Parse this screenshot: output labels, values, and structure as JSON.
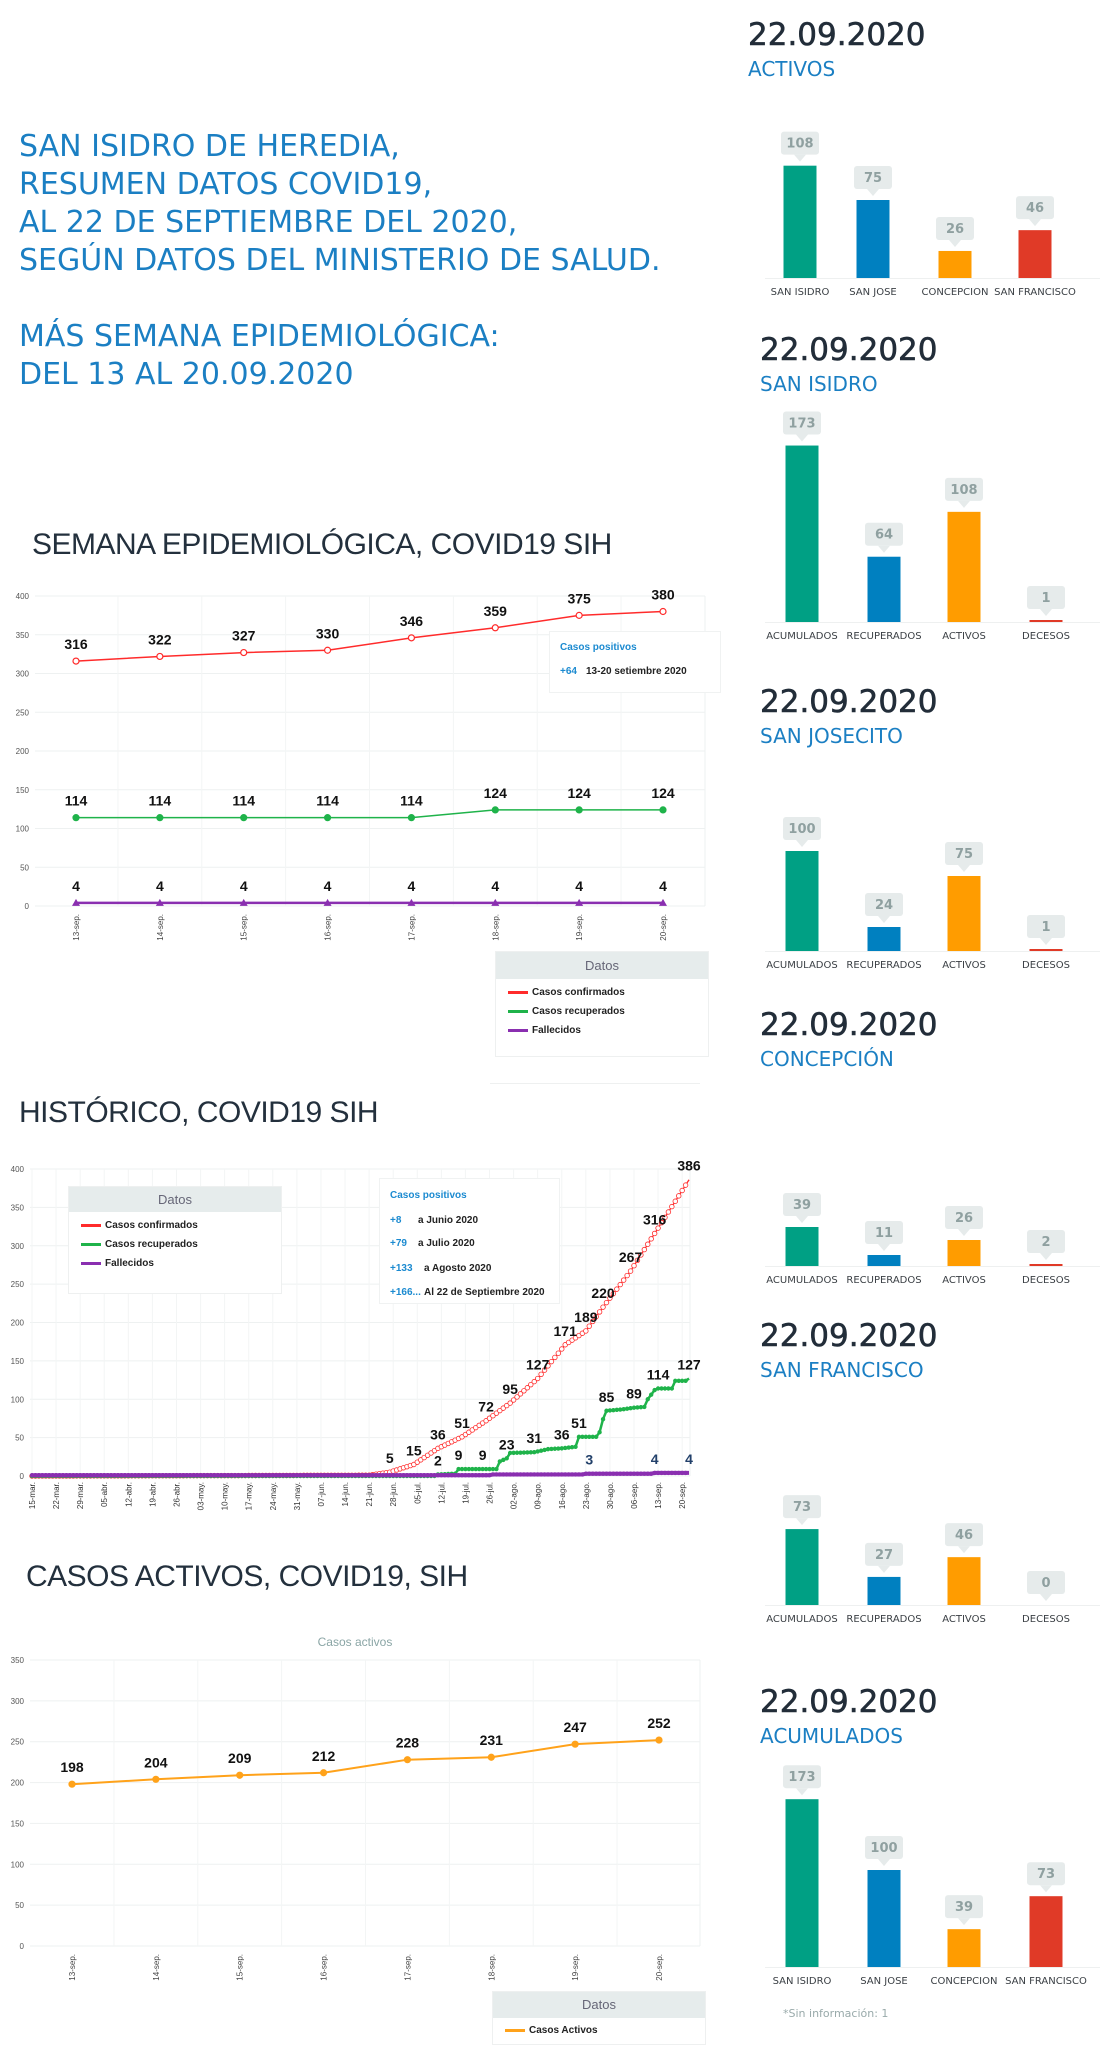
{
  "header": {
    "lines": [
      "SAN ISIDRO DE HEREDIA,",
      "RESUMEN DATOS COVID19,",
      "AL 22 DE SEPTIEMBRE DEL 2020,",
      "SEGÚN DATOS DEL MINISTERIO DE SALUD."
    ],
    "week_lines": [
      "MÁS SEMANA EPIDEMIOLÓGICA:",
      "DEL 13 AL 20.09.2020"
    ]
  },
  "sections": {
    "weekly_title": "SEMANA EPIDEMIOLÓGICA, COVID19 SIH",
    "historic_title": "HISTÓRICO, COVID19 SIH",
    "active_title": "CASOS ACTIVOS, COVID19, SIH"
  },
  "colors": {
    "accent": "#1b7fc3",
    "confirmed": "#ff2b2b",
    "recovered": "#1fb34a",
    "deaths": "#8a2fb0",
    "active": "#ffa21a",
    "bar_green": "#00a084",
    "bar_blue": "#0080c0",
    "bar_orange": "#ff9c00",
    "bar_red": "#e03a27"
  },
  "legend": {
    "title": "Datos",
    "confirmed": "Casos confirmados",
    "recovered": "Casos recuperados",
    "deaths": "Fallecidos",
    "active": "Casos Activos"
  },
  "weekly_box": {
    "title": "Casos positivos",
    "delta": "+64",
    "period": "13-20 setiembre 2020"
  },
  "historic_box": {
    "title": "Casos positivos",
    "rows": [
      {
        "delta": "+8",
        "text": "a Junio 2020"
      },
      {
        "delta": "+79",
        "text": "a Julio 2020"
      },
      {
        "delta": "+133",
        "text": "a Agosto 2020"
      },
      {
        "delta": "+166...",
        "text": "Al 22 de Septiembre 2020"
      }
    ]
  },
  "footnote": "*Sin información: 1",
  "chart_data": [
    {
      "type": "line",
      "categories": [
        "13-sep.",
        "14-sep.",
        "15-sep.",
        "16-sep.",
        "17-sep.",
        "18-sep.",
        "19-sep.",
        "20-sep."
      ],
      "y_ticks": [
        "0",
        "50",
        "100",
        "150",
        "200",
        "250",
        "300",
        "350",
        "400"
      ],
      "ylim": [
        0,
        400
      ],
      "grid": true,
      "legend_placement": "bottom-right",
      "series": [
        {
          "name": "Casos confirmados",
          "values": [
            316,
            322,
            327,
            330,
            346,
            359,
            375,
            380
          ]
        },
        {
          "name": "Casos recuperados",
          "values": [
            114,
            114,
            114,
            114,
            114,
            124,
            124,
            124
          ]
        },
        {
          "name": "Fallecidos",
          "values": [
            4,
            4,
            4,
            4,
            4,
            4,
            4,
            4
          ]
        }
      ]
    },
    {
      "type": "line",
      "x_ticks": [
        "15-mar.",
        "22-mar.",
        "29-mar.",
        "05-abr.",
        "12-abr.",
        "19-abr.",
        "26-abr.",
        "03-may.",
        "10-may.",
        "17-may.",
        "24-may.",
        "31-may.",
        "07-jun.",
        "14-jun.",
        "21-jun.",
        "28-jun.",
        "05-jul.",
        "12-jul.",
        "19-jul.",
        "26-jul.",
        "02-ago.",
        "09-ago.",
        "16-ago.",
        "23-ago.",
        "30-ago.",
        "06-sep.",
        "13-sep.",
        "20-sep."
      ],
      "y_ticks": [
        "0",
        "50",
        "100",
        "150",
        "200",
        "250",
        "300",
        "350",
        "400"
      ],
      "ylim": [
        0,
        400
      ],
      "grid": true,
      "legend_placement": "top-left",
      "series": [
        {
          "name": "Casos confirmados",
          "points": [
            [
              "2020-03-15",
              0
            ],
            [
              "2020-06-21",
              1
            ],
            [
              "2020-06-27",
              5
            ],
            [
              "2020-07-04",
              15
            ],
            [
              "2020-07-11",
              36
            ],
            [
              "2020-07-18",
              51
            ],
            [
              "2020-07-25",
              72
            ],
            [
              "2020-08-01",
              95
            ],
            [
              "2020-08-09",
              127
            ],
            [
              "2020-08-17",
              171
            ],
            [
              "2020-08-23",
              189
            ],
            [
              "2020-08-28",
              220
            ],
            [
              "2020-09-05",
              267
            ],
            [
              "2020-09-12",
              316
            ],
            [
              "2020-09-22",
              386
            ]
          ],
          "labels": [
            [
              "2020-06-27",
              5
            ],
            [
              "2020-07-04",
              15
            ],
            [
              "2020-07-11",
              36
            ],
            [
              "2020-07-18",
              51
            ],
            [
              "2020-07-25",
              72
            ],
            [
              "2020-08-01",
              95
            ],
            [
              "2020-08-09",
              127
            ],
            [
              "2020-08-17",
              171
            ],
            [
              "2020-08-23",
              189
            ],
            [
              "2020-08-28",
              220
            ],
            [
              "2020-09-05",
              267
            ],
            [
              "2020-09-12",
              316
            ],
            [
              "2020-09-22",
              386
            ]
          ]
        },
        {
          "name": "Casos recuperados",
          "points": [
            [
              "2020-03-15",
              0
            ],
            [
              "2020-07-10",
              0
            ],
            [
              "2020-07-11",
              2
            ],
            [
              "2020-07-16",
              3
            ],
            [
              "2020-07-17",
              9
            ],
            [
              "2020-07-28",
              9
            ],
            [
              "2020-07-29",
              19
            ],
            [
              "2020-07-31",
              23
            ],
            [
              "2020-08-01",
              30
            ],
            [
              "2020-08-08",
              31
            ],
            [
              "2020-08-12",
              35
            ],
            [
              "2020-08-16",
              36
            ],
            [
              "2020-08-20",
              38
            ],
            [
              "2020-08-21",
              51
            ],
            [
              "2020-08-26",
              51
            ],
            [
              "2020-08-27",
              57
            ],
            [
              "2020-08-28",
              74
            ],
            [
              "2020-08-29",
              85
            ],
            [
              "2020-09-03",
              87
            ],
            [
              "2020-09-06",
              89
            ],
            [
              "2020-09-09",
              90
            ],
            [
              "2020-09-10",
              100
            ],
            [
              "2020-09-12",
              112
            ],
            [
              "2020-09-13",
              114
            ],
            [
              "2020-09-17",
              114
            ],
            [
              "2020-09-18",
              124
            ],
            [
              "2020-09-21",
              124
            ],
            [
              "2020-09-22",
              127
            ]
          ],
          "labels": [
            [
              "2020-07-11",
              2
            ],
            [
              "2020-07-17",
              9
            ],
            [
              "2020-07-24",
              9
            ],
            [
              "2020-07-31",
              23
            ],
            [
              "2020-08-08",
              31
            ],
            [
              "2020-08-16",
              36
            ],
            [
              "2020-08-21",
              51
            ],
            [
              "2020-08-29",
              85
            ],
            [
              "2020-09-06",
              89
            ],
            [
              "2020-09-13",
              114
            ],
            [
              "2020-09-22",
              127
            ]
          ]
        },
        {
          "name": "Fallecidos",
          "points": [
            [
              "2020-03-15",
              1
            ],
            [
              "2020-07-26",
              1
            ],
            [
              "2020-07-27",
              2
            ],
            [
              "2020-08-22",
              2
            ],
            [
              "2020-08-23",
              3
            ],
            [
              "2020-09-11",
              3
            ],
            [
              "2020-09-12",
              4
            ],
            [
              "2020-09-22",
              4
            ]
          ],
          "labels": [
            [
              "2020-08-24",
              3
            ],
            [
              "2020-09-12",
              4
            ],
            [
              "2020-09-22",
              4
            ]
          ]
        }
      ]
    },
    {
      "type": "line",
      "title": "Casos activos",
      "categories": [
        "13-sep.",
        "14-sep.",
        "15-sep.",
        "16-sep.",
        "17-sep.",
        "18-sep.",
        "19-sep.",
        "20-sep."
      ],
      "y_ticks": [
        "0",
        "50",
        "100",
        "150",
        "200",
        "250",
        "300",
        "350"
      ],
      "ylim": [
        0,
        350
      ],
      "grid": true,
      "legend_placement": "bottom-right",
      "series": [
        {
          "name": "Casos Activos",
          "values": [
            198,
            204,
            209,
            212,
            228,
            231,
            247,
            252
          ]
        }
      ]
    },
    {
      "type": "bar",
      "date": "22.09.2020",
      "title": "ACTIVOS",
      "categories": [
        "SAN ISIDRO",
        "SAN JOSE",
        "CONCEPCION",
        "SAN FRANCISCO"
      ],
      "values": [
        108,
        75,
        26,
        46
      ],
      "colors": [
        "#00a084",
        "#0080c0",
        "#ff9c00",
        "#e03a27"
      ]
    },
    {
      "type": "bar",
      "date": "22.09.2020",
      "title": "SAN ISIDRO",
      "categories": [
        "ACUMULADOS",
        "RECUPERADOS",
        "ACTIVOS",
        "DECESOS"
      ],
      "values": [
        173,
        64,
        108,
        1
      ],
      "colors": [
        "#00a084",
        "#0080c0",
        "#ff9c00",
        "#e03a27"
      ]
    },
    {
      "type": "bar",
      "date": "22.09.2020",
      "title": "SAN JOSECITO",
      "categories": [
        "ACUMULADOS",
        "RECUPERADOS",
        "ACTIVOS",
        "DECESOS"
      ],
      "values": [
        100,
        24,
        75,
        1
      ],
      "colors": [
        "#00a084",
        "#0080c0",
        "#ff9c00",
        "#e03a27"
      ]
    },
    {
      "type": "bar",
      "date": "22.09.2020",
      "title": "CONCEPCIÓN",
      "categories": [
        "ACUMULADOS",
        "RECUPERADOS",
        "ACTIVOS",
        "DECESOS"
      ],
      "values": [
        39,
        11,
        26,
        2
      ],
      "colors": [
        "#00a084",
        "#0080c0",
        "#ff9c00",
        "#e03a27"
      ]
    },
    {
      "type": "bar",
      "date": "22.09.2020",
      "title": "SAN FRANCISCO",
      "categories": [
        "ACUMULADOS",
        "RECUPERADOS",
        "ACTIVOS",
        "DECESOS"
      ],
      "values": [
        73,
        27,
        46,
        0
      ],
      "colors": [
        "#00a084",
        "#0080c0",
        "#ff9c00",
        "#e03a27"
      ]
    },
    {
      "type": "bar",
      "date": "22.09.2020",
      "title": "ACUMULADOS",
      "categories": [
        "SAN ISIDRO",
        "SAN JOSE",
        "CONCEPCION",
        "SAN FRANCISCO"
      ],
      "values": [
        173,
        100,
        39,
        73
      ],
      "colors": [
        "#00a084",
        "#0080c0",
        "#ff9c00",
        "#e03a27"
      ]
    }
  ]
}
